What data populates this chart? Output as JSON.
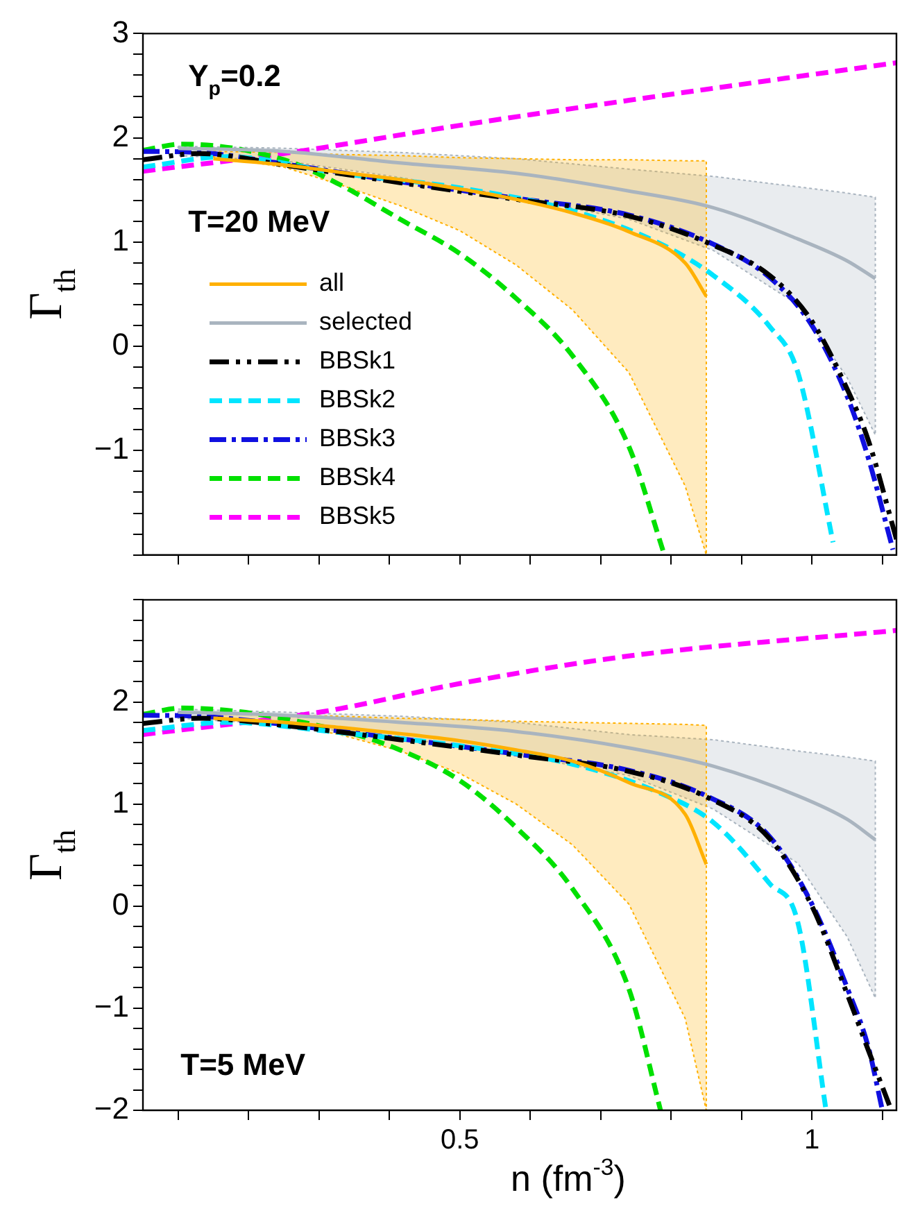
{
  "chart_data": [
    {
      "type": "line",
      "ylabel": "Γ$_{th}$",
      "annotations": [
        "Y$_{p}$=0.2",
        "T=20 MeV"
      ],
      "legend": "left",
      "grid": false,
      "tick_labels": "y",
      "xlim": [
        0.05,
        1.12
      ],
      "xticks": [
        {
          "value": 0.1,
          "label": null
        },
        {
          "value": 0.2,
          "label": null
        },
        {
          "value": 0.3,
          "label": null
        },
        {
          "value": 0.4,
          "label": null
        },
        {
          "value": 0.5,
          "label": null
        },
        {
          "value": 0.6,
          "label": null
        },
        {
          "value": 0.7,
          "label": null
        },
        {
          "value": 0.8,
          "label": null
        },
        {
          "value": 0.9,
          "label": null
        },
        {
          "value": 1,
          "label": null
        },
        {
          "value": 1.1,
          "label": null
        }
      ],
      "ylim": [
        -2,
        3
      ],
      "yticks": [
        {
          "value": -2,
          "label": null
        },
        {
          "value": -1.8,
          "label": null
        },
        {
          "value": -1.6,
          "label": null
        },
        {
          "value": -1.4,
          "label": null
        },
        {
          "value": -1.2,
          "label": null
        },
        {
          "value": -1,
          "label": "−1"
        },
        {
          "value": -0.8,
          "label": null
        },
        {
          "value": -0.6,
          "label": null
        },
        {
          "value": -0.4,
          "label": null
        },
        {
          "value": -0.2,
          "label": null
        },
        0,
        {
          "value": 0.2,
          "label": null
        },
        {
          "value": 0.4,
          "label": null
        },
        {
          "value": 0.6,
          "label": null
        },
        {
          "value": 0.8,
          "label": null
        },
        1,
        {
          "value": 1.2,
          "label": null
        },
        {
          "value": 1.4,
          "label": null
        },
        {
          "value": 1.6,
          "label": null
        },
        {
          "value": 1.8,
          "label": null
        },
        2,
        {
          "value": 2.2,
          "label": null
        },
        {
          "value": 2.4,
          "label": null
        },
        {
          "value": 2.6,
          "label": null
        },
        {
          "value": 2.8,
          "label": null
        },
        3
      ],
      "series": [
        {
          "name": "all",
          "color": "#ffb000",
          "line_style": "solid",
          "x": [
            0.15,
            0.25,
            0.33,
            0.415,
            0.5,
            0.58,
            0.66,
            0.74,
            0.82,
            0.85
          ],
          "values": [
            1.8,
            1.74,
            1.67,
            1.6,
            1.51,
            1.41,
            1.28,
            1.1,
            0.8,
            0.48
          ],
          "upper": [
            1.87,
            1.86,
            1.84,
            1.83,
            1.81,
            1.8,
            1.79,
            1.79,
            1.78,
            1.78
          ],
          "lower": [
            1.82,
            1.72,
            1.55,
            1.35,
            1.11,
            0.78,
            0.35,
            -0.25,
            -1.34,
            -2
          ]
        },
        {
          "name": "selected",
          "color": "#a9b4bf",
          "line_style": "solid",
          "x": [
            0.1,
            0.25,
            0.415,
            0.58,
            0.74,
            0.86,
            0.98,
            1.05,
            1.09
          ],
          "values": [
            1.9,
            1.87,
            1.76,
            1.66,
            1.49,
            1.33,
            1.03,
            0.82,
            0.65
          ],
          "upper": [
            1.92,
            1.9,
            1.86,
            1.8,
            1.7,
            1.63,
            1.53,
            1.47,
            1.43
          ],
          "lower": [
            1.83,
            1.78,
            1.62,
            1.43,
            1.22,
            0.92,
            0.4,
            -0.3,
            -0.85
          ]
        },
        {
          "name": "BBSk1",
          "color": "#000000",
          "line_style": "dashdotdot",
          "x": [
            0.05,
            0.13,
            0.25,
            0.415,
            0.58,
            0.74,
            0.86,
            0.94,
            1.0,
            1.05,
            1.08,
            1.12
          ],
          "values": [
            1.79,
            1.85,
            1.74,
            1.57,
            1.41,
            1.25,
            0.97,
            0.68,
            0.24,
            -0.41,
            -0.9,
            -1.85
          ]
        },
        {
          "name": "BBSk2",
          "color": "#00e5ff",
          "line_style": "dashed",
          "x": [
            0.05,
            0.17,
            0.33,
            0.5,
            0.66,
            0.78,
            0.86,
            0.94,
            0.98,
            1.03
          ],
          "values": [
            1.72,
            1.82,
            1.66,
            1.52,
            1.3,
            1.0,
            0.68,
            0.19,
            -0.25,
            -1.88
          ]
        },
        {
          "name": "BBSk3",
          "color": "#1010e0",
          "line_style": "dashdot",
          "x": [
            0.05,
            0.13,
            0.25,
            0.415,
            0.58,
            0.74,
            0.86,
            0.94,
            1.0,
            1.05,
            1.08,
            1.115
          ],
          "values": [
            1.87,
            1.86,
            1.75,
            1.58,
            1.42,
            1.26,
            0.98,
            0.66,
            0.2,
            -0.48,
            -1.07,
            -1.95
          ]
        },
        {
          "name": "BBSk4",
          "color": "#00e000",
          "line_style": "dashed",
          "x": [
            0.05,
            0.106,
            0.25,
            0.33,
            0.415,
            0.5,
            0.58,
            0.66,
            0.74,
            0.79
          ],
          "values": [
            1.88,
            1.94,
            1.79,
            1.55,
            1.22,
            0.89,
            0.46,
            -0.09,
            -0.96,
            -1.99
          ]
        },
        {
          "name": "BBSk5",
          "color": "#ff00ff",
          "line_style": "dashed",
          "x": [
            0.05,
            0.25,
            0.5,
            0.74,
            1.12
          ],
          "values": [
            1.68,
            1.85,
            2.12,
            2.36,
            2.72
          ]
        }
      ]
    },
    {
      "type": "line",
      "xlabel": "n (fm$^{-3}$)",
      "ylabel": "Γ$_{th}$",
      "annotations": [
        "T=5 MeV"
      ],
      "grid": false,
      "xlim": [
        0.05,
        1.12
      ],
      "xticks": [
        {
          "value": 0.1,
          "label": null
        },
        {
          "value": 0.2,
          "label": null
        },
        {
          "value": 0.3,
          "label": null
        },
        {
          "value": 0.4,
          "label": null
        },
        {
          "value": 0.5,
          "label": "0.5"
        },
        {
          "value": 0.6,
          "label": null
        },
        {
          "value": 0.7,
          "label": null
        },
        {
          "value": 0.8,
          "label": null
        },
        {
          "value": 0.9,
          "label": null
        },
        {
          "value": 1,
          "label": "1"
        },
        {
          "value": 1.1,
          "label": null
        }
      ],
      "ylim": [
        -2,
        3
      ],
      "yticks": [
        {
          "value": -2,
          "label": "−2"
        },
        {
          "value": -1.8,
          "label": null
        },
        {
          "value": -1.6,
          "label": null
        },
        {
          "value": -1.4,
          "label": null
        },
        {
          "value": -1.2,
          "label": null
        },
        {
          "value": -1,
          "label": "−1"
        },
        {
          "value": -0.8,
          "label": null
        },
        {
          "value": -0.6,
          "label": null
        },
        {
          "value": -0.4,
          "label": null
        },
        {
          "value": -0.2,
          "label": null
        },
        0,
        {
          "value": 0.2,
          "label": null
        },
        {
          "value": 0.4,
          "label": null
        },
        {
          "value": 0.6,
          "label": null
        },
        {
          "value": 0.8,
          "label": null
        },
        1,
        {
          "value": 1.2,
          "label": null
        },
        {
          "value": 1.4,
          "label": null
        },
        {
          "value": 1.6,
          "label": null
        },
        {
          "value": 1.8,
          "label": null
        },
        2,
        {
          "value": 2.2,
          "label": null
        },
        {
          "value": 2.4,
          "label": null
        },
        {
          "value": 2.6,
          "label": null
        },
        {
          "value": 2.8,
          "label": null
        },
        {
          "value": 3,
          "label": null
        }
      ],
      "series": [
        {
          "color": "#ffb000",
          "line_style": "solid",
          "x": [
            0.15,
            0.25,
            0.33,
            0.415,
            0.5,
            0.58,
            0.66,
            0.74,
            0.82,
            0.85
          ],
          "values": [
            1.84,
            1.8,
            1.75,
            1.69,
            1.62,
            1.53,
            1.42,
            1.21,
            0.9,
            0.41
          ],
          "upper": [
            1.88,
            1.87,
            1.86,
            1.84,
            1.83,
            1.81,
            1.8,
            1.79,
            1.78,
            1.77
          ],
          "lower": [
            1.85,
            1.78,
            1.68,
            1.52,
            1.3,
            1.0,
            0.6,
            0.02,
            -1.1,
            -2
          ]
        },
        {
          "color": "#a9b4bf",
          "line_style": "solid",
          "x": [
            0.1,
            0.25,
            0.415,
            0.58,
            0.74,
            0.86,
            0.98,
            1.05,
            1.09
          ],
          "values": [
            1.9,
            1.87,
            1.8,
            1.71,
            1.55,
            1.37,
            1.08,
            0.85,
            0.65
          ],
          "upper": [
            1.93,
            1.9,
            1.86,
            1.8,
            1.68,
            1.63,
            1.52,
            1.46,
            1.42
          ],
          "lower": [
            1.84,
            1.78,
            1.65,
            1.48,
            1.28,
            0.95,
            0.42,
            -0.3,
            -0.9
          ]
        },
        {
          "color": "#000000",
          "line_style": "dashdotdot",
          "x": [
            0.05,
            0.13,
            0.25,
            0.415,
            0.58,
            0.74,
            0.85,
            0.94,
            1.0,
            1.05,
            1.08,
            1.11
          ],
          "values": [
            1.79,
            1.84,
            1.77,
            1.63,
            1.48,
            1.32,
            1.07,
            0.66,
            0.0,
            -0.86,
            -1.41,
            -1.95
          ]
        },
        {
          "color": "#00e5ff",
          "line_style": "dashed",
          "x": [
            0.05,
            0.17,
            0.33,
            0.5,
            0.66,
            0.78,
            0.86,
            0.94,
            0.98,
            1.02
          ],
          "values": [
            1.72,
            1.8,
            1.7,
            1.57,
            1.39,
            1.12,
            0.82,
            0.22,
            -0.16,
            -2
          ]
        },
        {
          "color": "#1010e0",
          "line_style": "dashdot",
          "x": [
            0.05,
            0.13,
            0.25,
            0.415,
            0.58,
            0.74,
            0.85,
            0.94,
            1.0,
            1.05,
            1.08,
            1.1
          ],
          "values": [
            1.87,
            1.86,
            1.78,
            1.64,
            1.49,
            1.33,
            1.08,
            0.68,
            0.02,
            -0.8,
            -1.38,
            -2
          ]
        },
        {
          "color": "#00e000",
          "line_style": "dashed",
          "x": [
            0.05,
            0.106,
            0.33,
            0.415,
            0.5,
            0.58,
            0.66,
            0.74,
            0.785
          ],
          "values": [
            1.88,
            1.94,
            1.72,
            1.53,
            1.23,
            0.77,
            0.17,
            -0.81,
            -2
          ]
        },
        {
          "color": "#ff00ff",
          "line_style": "dashed",
          "x": [
            0.05,
            0.31,
            0.5,
            0.74,
            1.12
          ],
          "values": [
            1.68,
            1.91,
            2.18,
            2.45,
            2.7
          ]
        }
      ]
    }
  ]
}
